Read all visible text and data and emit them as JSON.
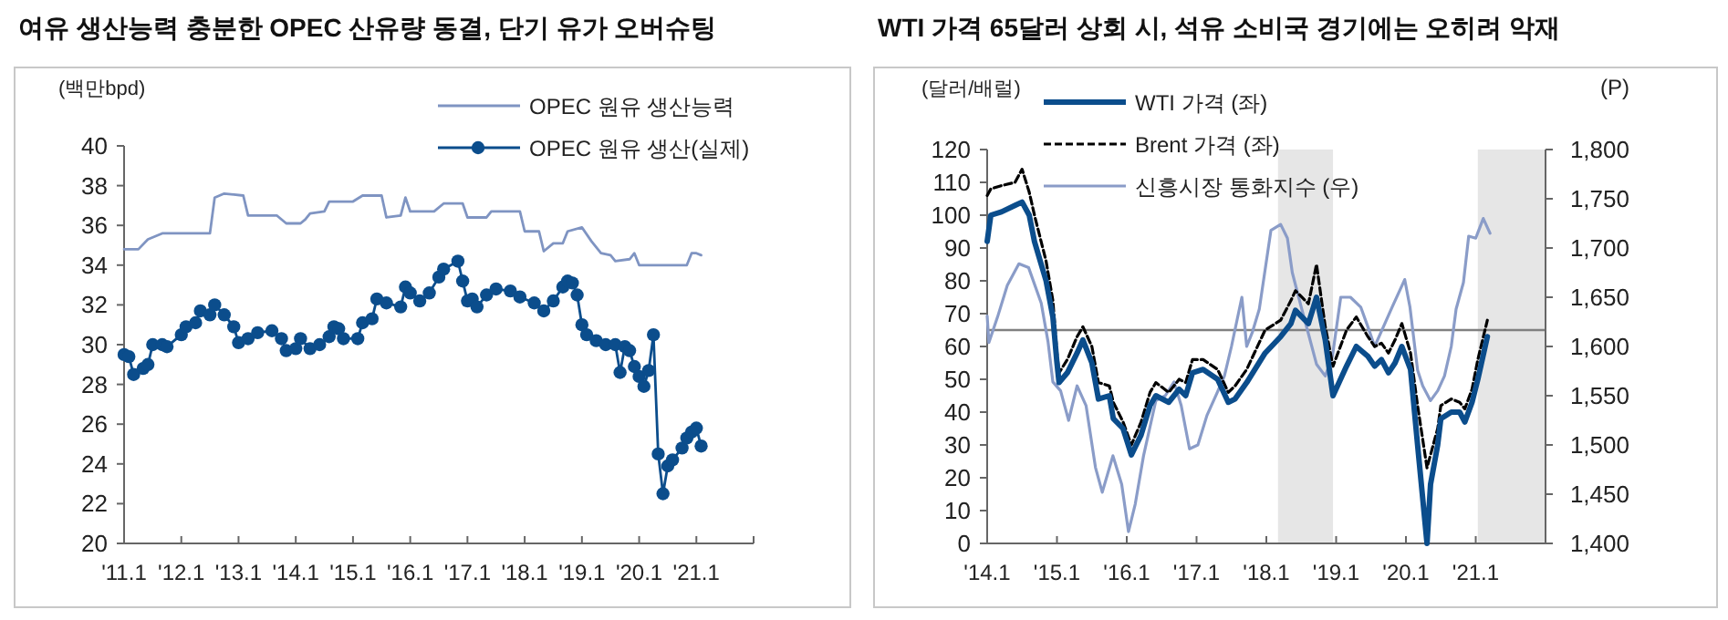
{
  "chart_data": [
    {
      "type": "line",
      "title": "여유 생산능력 충분한 OPEC 산유량 동결, 단기 유가 오버슈팅",
      "ylabel": "(백만bpd)",
      "xlim": [
        "2011-01",
        "2022-01"
      ],
      "xticks": [
        {
          "value": "2011-01",
          "label": "'11.1"
        },
        {
          "value": "2012-01",
          "label": "'12.1"
        },
        {
          "value": "2013-01",
          "label": "'13.1"
        },
        {
          "value": "2014-01",
          "label": "'14.1"
        },
        {
          "value": "2015-01",
          "label": "'15.1"
        },
        {
          "value": "2016-01",
          "label": "'16.1"
        },
        {
          "value": "2017-01",
          "label": "'17.1"
        },
        {
          "value": "2018-01",
          "label": "'18.1"
        },
        {
          "value": "2019-01",
          "label": "'19.1"
        },
        {
          "value": "2020-01",
          "label": "'20.1"
        },
        {
          "value": "2021-01",
          "label": "'21.1"
        },
        {
          "value": "2022-01",
          "label": null
        }
      ],
      "ylim": [
        20,
        40
      ],
      "yticks": [
        20,
        22,
        24,
        26,
        28,
        30,
        32,
        34,
        36,
        38,
        40
      ],
      "legend": "top right",
      "series": [
        {
          "name": "OPEC 원유 생산능력",
          "color": "#7f94c2",
          "marker": "none",
          "x": [
            "2011-01",
            "2011-04",
            "2011-06",
            "2011-09",
            "2012-07",
            "2012-08",
            "2012-10",
            "2013-02",
            "2013-03",
            "2013-09",
            "2013-11",
            "2014-02",
            "2014-03",
            "2014-04",
            "2014-07",
            "2014-08",
            "2015-01",
            "2015-03",
            "2015-07",
            "2015-08",
            "2015-11",
            "2015-12",
            "2016-01",
            "2016-06",
            "2016-08",
            "2016-12",
            "2017-01",
            "2017-05",
            "2017-06",
            "2017-12",
            "2018-01",
            "2018-04",
            "2018-05",
            "2018-07",
            "2018-09",
            "2018-10",
            "2019-01",
            "2019-03",
            "2019-05",
            "2019-07",
            "2019-08",
            "2019-11",
            "2019-12",
            "2020-01",
            "2020-11",
            "2020-12",
            "2021-01",
            "2021-02"
          ],
          "values": [
            34.8,
            34.8,
            35.3,
            35.6,
            35.6,
            37.4,
            37.6,
            37.5,
            36.5,
            36.5,
            36.1,
            36.1,
            36.3,
            36.6,
            36.7,
            37.2,
            37.2,
            37.5,
            37.5,
            36.4,
            36.5,
            37.4,
            36.7,
            36.7,
            37.1,
            37.1,
            36.4,
            36.4,
            36.7,
            36.7,
            35.7,
            35.7,
            34.7,
            35.1,
            35.1,
            35.7,
            35.9,
            35.2,
            34.6,
            34.5,
            34.2,
            34.3,
            34.6,
            34.0,
            34.0,
            34.6,
            34.6,
            34.5
          ]
        },
        {
          "name": "OPEC 원유 생산(실제)",
          "color": "#0b4d8c",
          "marker": "circle",
          "x": [
            "2011-01",
            "2011-02",
            "2011-03",
            "2011-05",
            "2011-06",
            "2011-07",
            "2011-09",
            "2011-10",
            "2012-01",
            "2012-02",
            "2012-04",
            "2012-05",
            "2012-07",
            "2012-08",
            "2012-10",
            "2012-12",
            "2013-01",
            "2013-03",
            "2013-05",
            "2013-08",
            "2013-10",
            "2013-11",
            "2014-01",
            "2014-02",
            "2014-04",
            "2014-06",
            "2014-08",
            "2014-09",
            "2014-10",
            "2014-11",
            "2015-02",
            "2015-03",
            "2015-05",
            "2015-06",
            "2015-08",
            "2015-11",
            "2015-12",
            "2016-01",
            "2016-03",
            "2016-05",
            "2016-07",
            "2016-08",
            "2016-11",
            "2016-12",
            "2017-01",
            "2017-02",
            "2017-03",
            "2017-05",
            "2017-07",
            "2017-10",
            "2017-12",
            "2018-03",
            "2018-05",
            "2018-07",
            "2018-09",
            "2018-10",
            "2018-11",
            "2018-12",
            "2019-01",
            "2019-02",
            "2019-04",
            "2019-06",
            "2019-08",
            "2019-09",
            "2019-10",
            "2019-11",
            "2019-12",
            "2020-01",
            "2020-02",
            "2020-03",
            "2020-04",
            "2020-05",
            "2020-06",
            "2020-07",
            "2020-08",
            "2020-10",
            "2020-11",
            "2020-12",
            "2021-01",
            "2021-02"
          ],
          "values": [
            29.5,
            29.4,
            28.5,
            28.8,
            29.0,
            30.0,
            30.0,
            29.9,
            30.5,
            30.9,
            31.1,
            31.7,
            31.5,
            32.0,
            31.5,
            30.9,
            30.1,
            30.3,
            30.6,
            30.7,
            30.3,
            29.7,
            29.8,
            30.3,
            29.8,
            30.0,
            30.4,
            30.9,
            30.8,
            30.3,
            30.3,
            31.1,
            31.3,
            32.3,
            32.1,
            31.9,
            32.9,
            32.6,
            32.2,
            32.6,
            33.4,
            33.8,
            34.2,
            33.2,
            32.2,
            32.3,
            31.9,
            32.5,
            32.8,
            32.7,
            32.4,
            32.1,
            31.7,
            32.2,
            32.9,
            33.2,
            33.1,
            32.5,
            31.0,
            30.5,
            30.2,
            30.0,
            30.0,
            28.6,
            29.9,
            29.7,
            28.9,
            28.4,
            27.9,
            28.7,
            30.5,
            24.5,
            22.5,
            23.9,
            24.2,
            24.8,
            25.3,
            25.6,
            25.8,
            24.9
          ]
        }
      ]
    },
    {
      "type": "line",
      "title": "WTI 가격 65달러 상회 시, 석유 소비국 경기에는 오히려 악재",
      "ylabel": "(달러/배럴)",
      "y2label": "(P)",
      "xlim": [
        "2014-01",
        "2022-01"
      ],
      "xticks": [
        {
          "value": "2014-01",
          "label": "'14.1"
        },
        {
          "value": "2015-01",
          "label": "'15.1"
        },
        {
          "value": "2016-01",
          "label": "'16.1"
        },
        {
          "value": "2017-01",
          "label": "'17.1"
        },
        {
          "value": "2018-01",
          "label": "'18.1"
        },
        {
          "value": "2019-01",
          "label": "'19.1"
        },
        {
          "value": "2020-01",
          "label": "'20.1"
        },
        {
          "value": "2021-01",
          "label": "'21.1"
        },
        {
          "value": "2022-01",
          "label": null
        }
      ],
      "ylim": [
        0,
        120
      ],
      "yticks": [
        0,
        10,
        20,
        30,
        40,
        50,
        60,
        70,
        80,
        90,
        100,
        110,
        120
      ],
      "y2lim": [
        1400,
        1800
      ],
      "y2ticks": [
        {
          "value": 1400,
          "label": "1,400"
        },
        {
          "value": 1450,
          "label": "1,450"
        },
        {
          "value": 1500,
          "label": "1,500"
        },
        {
          "value": 1550,
          "label": "1,550"
        },
        {
          "value": 1600,
          "label": "1,600"
        },
        {
          "value": 1650,
          "label": "1,650"
        },
        {
          "value": 1700,
          "label": "1,700"
        },
        {
          "value": 1750,
          "label": "1,750"
        },
        {
          "value": 1800,
          "label": "1,800"
        }
      ],
      "legend": "top left",
      "ref_lines": [
        {
          "axis": "y",
          "value": 65,
          "color": "#808080"
        }
      ],
      "bands": [
        {
          "axis": "x",
          "from": "2018-03-01",
          "to": "2018-12-15",
          "color": "#e6e6e6"
        },
        {
          "axis": "x",
          "from": "2021-01-12",
          "to": "2022-01",
          "color": "#e6e6e6"
        }
      ],
      "series": [
        {
          "name": "신흥시장 통화지수 (우)",
          "color": "#8a9cc8",
          "axis": "y2",
          "line_style": "solid",
          "x": [
            "2014-01-01",
            "2014-01-10",
            "2014-02-25",
            "2014-04-15",
            "2014-06-15",
            "2014-08-05",
            "2014-10-10",
            "2014-11-15",
            "2014-12-10",
            "2015-01-20",
            "2015-03-01",
            "2015-04-15",
            "2015-06-01",
            "2015-07-20",
            "2015-08-25",
            "2015-10-20",
            "2015-12-05",
            "2016-01-10",
            "2016-02-15",
            "2016-03-28",
            "2016-06-01",
            "2016-07-20",
            "2016-09-05",
            "2016-10-12",
            "2016-11-25",
            "2017-01-08",
            "2017-02-25",
            "2017-04-15",
            "2017-05-25",
            "2017-07-01",
            "2017-08-25",
            "2017-09-20",
            "2017-10-20",
            "2017-11-25",
            "2018-01-25",
            "2018-03-15",
            "2018-04-20",
            "2018-05-15",
            "2018-07-01",
            "2018-08-08",
            "2018-09-20",
            "2018-11-05",
            "2018-12-12",
            "2019-01-25",
            "2019-03-15",
            "2019-05-08",
            "2019-06-15",
            "2019-07-20",
            "2019-09-05",
            "2019-10-20",
            "2019-12-25",
            "2020-01-22",
            "2020-03-01",
            "2020-03-28",
            "2020-05-08",
            "2020-06-15",
            "2020-07-20",
            "2020-08-25",
            "2020-09-20",
            "2020-10-28",
            "2020-11-25",
            "2021-01-01",
            "2021-02-10",
            "2021-03-15"
          ],
          "values": [
            1631,
            1604,
            1630,
            1662,
            1684,
            1680,
            1644,
            1605,
            1564,
            1555,
            1525,
            1560,
            1540,
            1477,
            1452,
            1489,
            1460,
            1412,
            1440,
            1489,
            1545,
            1550,
            1564,
            1540,
            1496,
            1500,
            1530,
            1552,
            1570,
            1600,
            1650,
            1600,
            1615,
            1638,
            1718,
            1724,
            1710,
            1675,
            1640,
            1613,
            1582,
            1570,
            1590,
            1650,
            1650,
            1640,
            1620,
            1600,
            1620,
            1640,
            1668,
            1640,
            1576,
            1560,
            1545,
            1555,
            1570,
            1600,
            1638,
            1665,
            1712,
            1710,
            1730,
            1715
          ]
        },
        {
          "name": "Brent 가격 (좌)",
          "color": "#000000",
          "line_style": "dashed",
          "x": [
            "2014-01-01",
            "2014-01-20",
            "2014-03-15",
            "2014-05-25",
            "2014-07-01",
            "2014-08-08",
            "2014-09-05",
            "2014-11-05",
            "2014-12-10",
            "2015-01-01",
            "2015-01-12",
            "2015-02-25",
            "2015-04-15",
            "2015-05-15",
            "2015-07-01",
            "2015-08-05",
            "2015-10-01",
            "2015-10-22",
            "2015-12-12",
            "2016-01-25",
            "2016-03-15",
            "2016-05-01",
            "2016-06-01",
            "2016-08-08",
            "2016-10-01",
            "2016-11-05",
            "2016-12-10",
            "2017-02-05",
            "2017-04-20",
            "2017-06-15",
            "2017-07-20",
            "2017-09-20",
            "2017-12-25",
            "2018-03-15",
            "2018-05-08",
            "2018-06-01",
            "2018-08-08",
            "2018-09-20",
            "2018-11-05",
            "2018-12-15",
            "2019-02-25",
            "2019-04-15",
            "2019-06-15",
            "2019-07-20",
            "2019-08-25",
            "2019-10-01",
            "2019-11-05",
            "2019-12-10",
            "2020-01-25",
            "2020-03-01",
            "2020-04-20",
            "2020-05-08",
            "2020-06-15",
            "2020-07-01",
            "2020-08-25",
            "2020-10-08",
            "2020-11-05",
            "2020-12-12",
            "2021-01-12",
            "2021-03-01"
          ],
          "values": [
            106,
            108,
            109,
            110,
            114,
            107,
            100,
            86,
            74,
            58,
            52,
            56,
            63,
            66,
            60,
            49,
            48,
            43,
            37,
            30,
            37,
            46,
            49,
            46,
            50,
            49,
            56,
            56,
            53,
            46,
            48,
            53,
            65,
            68,
            74,
            77,
            73,
            85,
            66,
            54,
            65,
            69,
            63,
            60,
            61,
            58,
            62,
            67,
            58,
            42,
            23,
            27,
            35,
            42,
            44,
            43,
            41,
            47,
            56,
            68
          ]
        },
        {
          "name": "WTI 가격 (좌)",
          "color": "#0b4d8c",
          "line_style": "solid",
          "x": [
            "2014-01-01",
            "2014-01-20",
            "2014-03-15",
            "2014-05-25",
            "2014-07-01",
            "2014-08-08",
            "2014-09-05",
            "2014-11-05",
            "2014-12-10",
            "2015-01-01",
            "2015-01-12",
            "2015-02-25",
            "2015-04-15",
            "2015-05-15",
            "2015-07-01",
            "2015-08-05",
            "2015-10-01",
            "2015-10-22",
            "2015-12-12",
            "2016-01-25",
            "2016-03-15",
            "2016-05-01",
            "2016-06-01",
            "2016-08-08",
            "2016-10-01",
            "2016-11-05",
            "2016-12-10",
            "2017-02-05",
            "2017-04-20",
            "2017-06-15",
            "2017-07-20",
            "2017-09-20",
            "2017-12-25",
            "2018-03-15",
            "2018-05-08",
            "2018-06-01",
            "2018-08-08",
            "2018-09-20",
            "2018-11-05",
            "2018-12-15",
            "2019-02-25",
            "2019-04-15",
            "2019-06-15",
            "2019-07-20",
            "2019-08-25",
            "2019-10-01",
            "2019-11-05",
            "2019-12-10",
            "2020-01-25",
            "2020-03-01",
            "2020-04-20",
            "2020-05-08",
            "2020-06-15",
            "2020-07-01",
            "2020-08-25",
            "2020-10-08",
            "2020-11-05",
            "2020-12-12",
            "2021-01-12",
            "2021-03-01"
          ],
          "values": [
            92,
            100,
            101,
            103,
            104,
            100,
            92,
            80,
            69,
            55,
            49,
            52,
            58,
            62,
            55,
            44,
            45,
            38,
            35,
            27,
            33,
            42,
            45,
            43,
            47,
            45,
            52,
            53,
            50,
            43,
            44,
            49,
            58,
            63,
            67,
            71,
            67,
            75,
            62,
            45,
            54,
            60,
            57,
            54,
            56,
            52,
            55,
            60,
            53,
            30,
            0,
            18,
            30,
            38,
            40,
            40,
            37,
            43,
            50,
            63
          ]
        }
      ]
    }
  ]
}
